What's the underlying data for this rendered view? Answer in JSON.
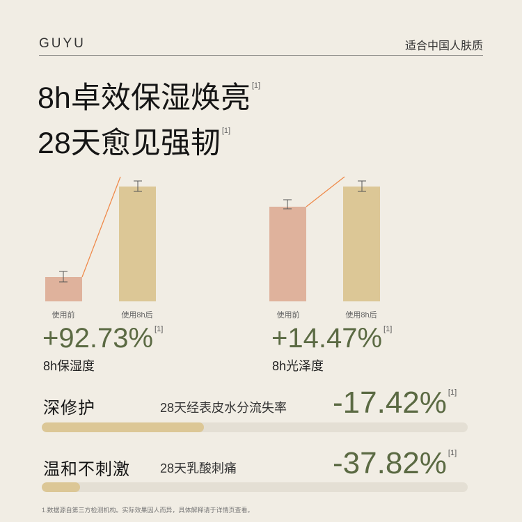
{
  "header": {
    "brand": "GUYU",
    "tagline": "适合中国人肤质"
  },
  "headline": {
    "line1": "8h卓效保湿焕亮",
    "line2": "28天愈见强韧",
    "note": "[1]"
  },
  "colors": {
    "before_bar": "#dfb29c",
    "after_bar": "#dcc796",
    "stat_green": "#5b6a43",
    "trend_line": "#ef8a4a"
  },
  "chart_data": [
    {
      "type": "bar",
      "categories": [
        "使用前",
        "使用8h后"
      ],
      "stat": "+92.73%",
      "stat_note": "[1]",
      "label": "8h保湿度"
    },
    {
      "type": "bar",
      "categories": [
        "使用前",
        "使用8h后"
      ],
      "stat": "+14.47%",
      "stat_note": "[1]",
      "label": "8h光泽度"
    }
  ],
  "rows": [
    {
      "title": "深修护",
      "desc": "28天经表皮水分流失率",
      "value": "-17.42%",
      "note": "[1]",
      "progress": 0.38
    },
    {
      "title": "温和不刺激",
      "desc": "28天乳酸刺痛",
      "value": "-37.82%",
      "note": "[1]",
      "progress": 0.09
    }
  ],
  "footnote": "1.数据源自第三方检测机构。实际效果因人而异，具体解释请于详情页查看。"
}
